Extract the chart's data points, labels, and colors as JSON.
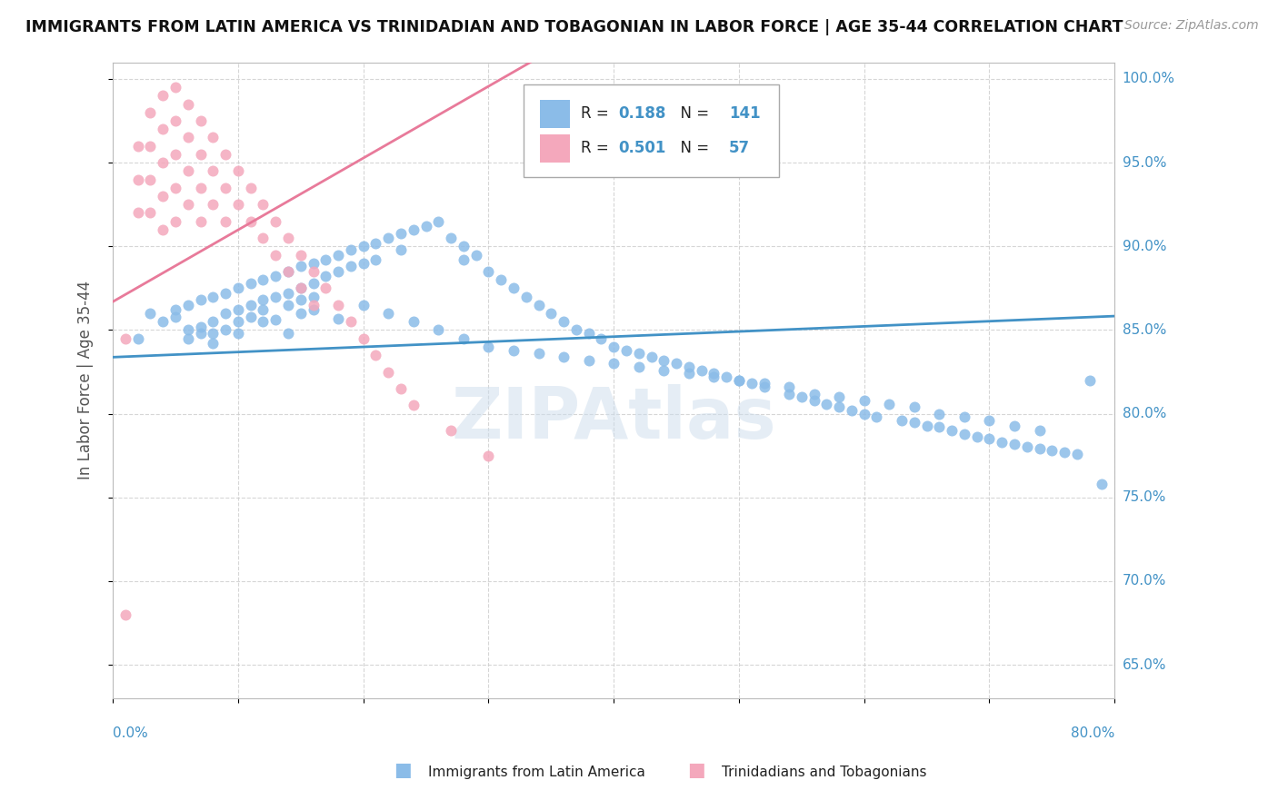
{
  "title": "IMMIGRANTS FROM LATIN AMERICA VS TRINIDADIAN AND TOBAGONIAN IN LABOR FORCE | AGE 35-44 CORRELATION CHART",
  "source": "Source: ZipAtlas.com",
  "ylabel": "In Labor Force | Age 35-44",
  "legend_label1": "Immigrants from Latin America",
  "legend_label2": "Trinidadians and Tobagonians",
  "R1": 0.188,
  "N1": 141,
  "R2": 0.501,
  "N2": 57,
  "blue_color": "#8bbce8",
  "pink_color": "#f4a8bc",
  "trend_blue": "#4292c6",
  "trend_pink": "#e87a9a",
  "xmin": 0.0,
  "xmax": 0.8,
  "ymin": 0.63,
  "ymax": 1.01,
  "ytick_labels": [
    "65.0%",
    "70.0%",
    "75.0%",
    "80.0%",
    "85.0%",
    "90.0%",
    "95.0%",
    "100.0%"
  ],
  "ytick_vals": [
    0.65,
    0.7,
    0.75,
    0.8,
    0.85,
    0.9,
    0.95,
    1.0
  ],
  "blue_scatter_x": [
    0.02,
    0.03,
    0.04,
    0.05,
    0.05,
    0.06,
    0.06,
    0.06,
    0.07,
    0.07,
    0.07,
    0.08,
    0.08,
    0.08,
    0.08,
    0.09,
    0.09,
    0.09,
    0.1,
    0.1,
    0.1,
    0.1,
    0.11,
    0.11,
    0.11,
    0.12,
    0.12,
    0.12,
    0.12,
    0.13,
    0.13,
    0.14,
    0.14,
    0.14,
    0.15,
    0.15,
    0.15,
    0.15,
    0.16,
    0.16,
    0.16,
    0.17,
    0.17,
    0.18,
    0.18,
    0.19,
    0.19,
    0.2,
    0.2,
    0.21,
    0.21,
    0.22,
    0.23,
    0.23,
    0.24,
    0.25,
    0.26,
    0.27,
    0.28,
    0.28,
    0.29,
    0.3,
    0.31,
    0.32,
    0.33,
    0.34,
    0.35,
    0.36,
    0.37,
    0.38,
    0.39,
    0.4,
    0.41,
    0.42,
    0.43,
    0.44,
    0.45,
    0.46,
    0.47,
    0.48,
    0.49,
    0.5,
    0.51,
    0.52,
    0.54,
    0.55,
    0.56,
    0.57,
    0.58,
    0.59,
    0.6,
    0.61,
    0.63,
    0.64,
    0.65,
    0.66,
    0.67,
    0.68,
    0.69,
    0.7,
    0.71,
    0.72,
    0.73,
    0.74,
    0.75,
    0.76,
    0.77,
    0.78,
    0.79,
    0.13,
    0.14,
    0.16,
    0.18,
    0.2,
    0.22,
    0.24,
    0.26,
    0.28,
    0.3,
    0.32,
    0.34,
    0.36,
    0.38,
    0.4,
    0.42,
    0.44,
    0.46,
    0.48,
    0.5,
    0.52,
    0.54,
    0.56,
    0.58,
    0.6,
    0.62,
    0.64,
    0.66,
    0.68,
    0.7,
    0.72,
    0.74
  ],
  "blue_scatter_y": [
    0.845,
    0.86,
    0.855,
    0.862,
    0.858,
    0.865,
    0.85,
    0.845,
    0.868,
    0.852,
    0.848,
    0.87,
    0.855,
    0.848,
    0.842,
    0.872,
    0.86,
    0.85,
    0.875,
    0.862,
    0.855,
    0.848,
    0.878,
    0.865,
    0.858,
    0.88,
    0.868,
    0.862,
    0.855,
    0.882,
    0.87,
    0.885,
    0.872,
    0.865,
    0.888,
    0.875,
    0.868,
    0.86,
    0.89,
    0.878,
    0.87,
    0.892,
    0.882,
    0.895,
    0.885,
    0.898,
    0.888,
    0.9,
    0.89,
    0.902,
    0.892,
    0.905,
    0.908,
    0.898,
    0.91,
    0.912,
    0.915,
    0.905,
    0.9,
    0.892,
    0.895,
    0.885,
    0.88,
    0.875,
    0.87,
    0.865,
    0.86,
    0.855,
    0.85,
    0.848,
    0.845,
    0.84,
    0.838,
    0.836,
    0.834,
    0.832,
    0.83,
    0.828,
    0.826,
    0.824,
    0.822,
    0.82,
    0.818,
    0.816,
    0.812,
    0.81,
    0.808,
    0.806,
    0.804,
    0.802,
    0.8,
    0.798,
    0.796,
    0.795,
    0.793,
    0.792,
    0.79,
    0.788,
    0.786,
    0.785,
    0.783,
    0.782,
    0.78,
    0.779,
    0.778,
    0.777,
    0.776,
    0.82,
    0.758,
    0.856,
    0.848,
    0.862,
    0.857,
    0.865,
    0.86,
    0.855,
    0.85,
    0.845,
    0.84,
    0.838,
    0.836,
    0.834,
    0.832,
    0.83,
    0.828,
    0.826,
    0.824,
    0.822,
    0.82,
    0.818,
    0.816,
    0.812,
    0.81,
    0.808,
    0.806,
    0.804,
    0.8,
    0.798,
    0.796,
    0.793,
    0.79
  ],
  "pink_scatter_x": [
    0.01,
    0.02,
    0.02,
    0.02,
    0.03,
    0.03,
    0.03,
    0.03,
    0.04,
    0.04,
    0.04,
    0.04,
    0.04,
    0.05,
    0.05,
    0.05,
    0.05,
    0.05,
    0.06,
    0.06,
    0.06,
    0.06,
    0.07,
    0.07,
    0.07,
    0.07,
    0.08,
    0.08,
    0.08,
    0.09,
    0.09,
    0.09,
    0.1,
    0.1,
    0.11,
    0.11,
    0.12,
    0.12,
    0.13,
    0.13,
    0.14,
    0.14,
    0.15,
    0.15,
    0.16,
    0.16,
    0.17,
    0.18,
    0.19,
    0.2,
    0.21,
    0.22,
    0.23,
    0.24,
    0.27,
    0.3,
    0.01
  ],
  "pink_scatter_y": [
    0.845,
    0.96,
    0.94,
    0.92,
    0.98,
    0.96,
    0.94,
    0.92,
    0.99,
    0.97,
    0.95,
    0.93,
    0.91,
    0.995,
    0.975,
    0.955,
    0.935,
    0.915,
    0.985,
    0.965,
    0.945,
    0.925,
    0.975,
    0.955,
    0.935,
    0.915,
    0.965,
    0.945,
    0.925,
    0.955,
    0.935,
    0.915,
    0.945,
    0.925,
    0.935,
    0.915,
    0.925,
    0.905,
    0.915,
    0.895,
    0.905,
    0.885,
    0.895,
    0.875,
    0.885,
    0.865,
    0.875,
    0.865,
    0.855,
    0.845,
    0.835,
    0.825,
    0.815,
    0.805,
    0.79,
    0.775,
    0.68
  ]
}
